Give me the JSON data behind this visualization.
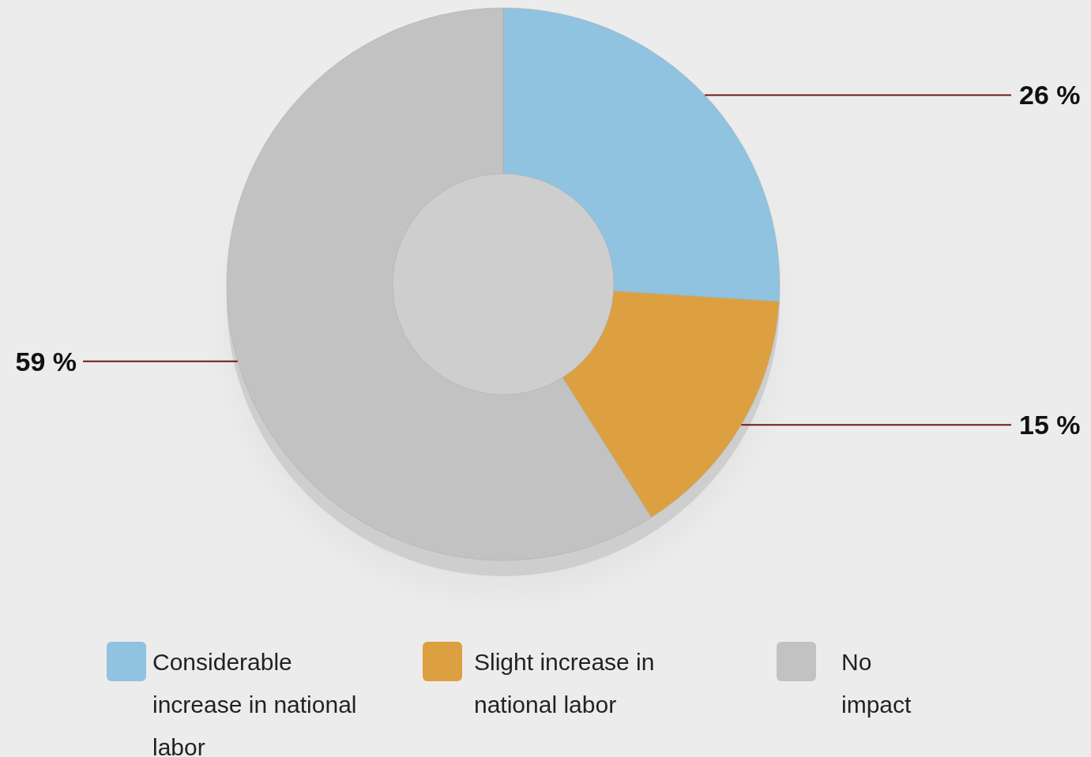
{
  "chart_data": {
    "type": "donut",
    "categories": [
      "Considerable increase in national labor",
      "Slight increase in national labor",
      "No impact"
    ],
    "values": [
      26,
      15,
      59
    ],
    "colors": [
      "#8fc3df",
      "#dca040",
      "#c2c2c2"
    ],
    "value_labels": [
      "26 %",
      "15 %",
      "59 %"
    ],
    "legend": "bottom"
  }
}
